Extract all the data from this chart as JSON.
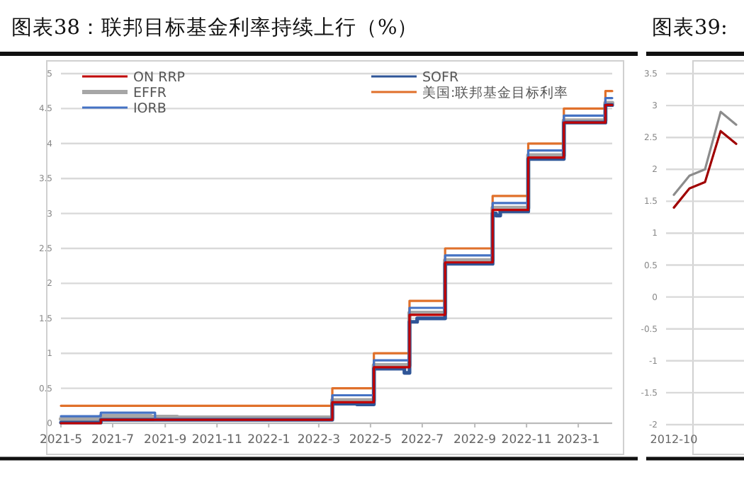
{
  "chart_data": [
    {
      "type": "step",
      "title": "图表38：联邦目标基金利率持续上行（%）",
      "xlim": [
        "2021-05-01",
        "2023-02-10"
      ],
      "xticks": [
        {
          "value": "2021-05-01",
          "label": "2021-5"
        },
        {
          "value": "2021-07-01",
          "label": "2021-7"
        },
        {
          "value": "2021-09-01",
          "label": "2021-9"
        },
        {
          "value": "2021-11-01",
          "label": "2021-11"
        },
        {
          "value": "2022-01-01",
          "label": "2022-1"
        },
        {
          "value": "2022-03-01",
          "label": "2022-3"
        },
        {
          "value": "2022-05-01",
          "label": "2022-5"
        },
        {
          "value": "2022-07-01",
          "label": "2022-7"
        },
        {
          "value": "2022-09-01",
          "label": "2022-9"
        },
        {
          "value": "2022-11-01",
          "label": "2022-11"
        },
        {
          "value": "2023-01-01",
          "label": "2023-1"
        }
      ],
      "ylim": [
        0,
        5
      ],
      "yticks": [
        0,
        0.5,
        1,
        1.5,
        2,
        2.5,
        3,
        3.5,
        4,
        4.5,
        5
      ],
      "grid": "y",
      "legend": "top",
      "series": [
        {
          "name": "ON RRP",
          "color": "#c00000",
          "x": [
            "2021-05-01",
            "2021-06-17",
            "2022-03-17",
            "2022-05-05",
            "2022-06-16",
            "2022-07-28",
            "2022-09-22",
            "2022-11-03",
            "2022-12-15",
            "2023-02-02",
            "2023-02-10"
          ],
          "values": [
            0,
            0.05,
            0.3,
            0.8,
            1.55,
            2.3,
            3.05,
            3.8,
            4.3,
            4.55,
            4.55
          ]
        },
        {
          "name": "EFFR",
          "color": "#a6a6a6",
          "x": [
            "2021-05-01",
            "2021-06-17",
            "2021-08-15",
            "2021-09-15",
            "2022-03-17",
            "2022-05-05",
            "2022-06-16",
            "2022-07-28",
            "2022-09-22",
            "2022-11-03",
            "2022-12-15",
            "2023-02-02",
            "2023-02-10"
          ],
          "values": [
            0.06,
            0.1,
            0.09,
            0.08,
            0.33,
            0.83,
            1.58,
            2.33,
            3.08,
            3.83,
            4.33,
            4.58,
            4.58
          ]
        },
        {
          "name": "IORB",
          "color": "#4472c4",
          "x": [
            "2021-05-01",
            "2021-06-17",
            "2021-08-20",
            "2022-03-17",
            "2022-05-05",
            "2022-06-16",
            "2022-07-28",
            "2022-09-22",
            "2022-11-03",
            "2022-12-15",
            "2023-02-02",
            "2023-02-10"
          ],
          "values": [
            0.1,
            0.15,
            0.05,
            0.4,
            0.9,
            1.65,
            2.4,
            3.15,
            3.9,
            4.4,
            4.65,
            4.65
          ]
        },
        {
          "name": "SOFR",
          "color": "#2f5597",
          "x": [
            "2021-05-01",
            "2021-06-17",
            "2022-03-17",
            "2022-04-15",
            "2022-05-05",
            "2022-06-10",
            "2022-06-16",
            "2022-06-25",
            "2022-07-28",
            "2022-09-22",
            "2022-09-26",
            "2022-10-01",
            "2022-11-03",
            "2022-12-15",
            "2023-02-02",
            "2023-02-10"
          ],
          "values": [
            0.01,
            0.05,
            0.28,
            0.27,
            0.78,
            0.72,
            1.45,
            1.5,
            2.28,
            3.0,
            2.97,
            3.03,
            3.78,
            4.3,
            4.55,
            4.55
          ]
        },
        {
          "name": "美国:联邦基金目标利率",
          "color": "#e0702a",
          "x": [
            "2021-05-01",
            "2022-03-17",
            "2022-05-05",
            "2022-06-16",
            "2022-07-28",
            "2022-09-22",
            "2022-11-03",
            "2022-12-15",
            "2023-02-02",
            "2023-02-10"
          ],
          "values": [
            0.25,
            0.5,
            1.0,
            1.75,
            2.5,
            3.25,
            4.0,
            4.5,
            4.75,
            4.75
          ]
        }
      ]
    },
    {
      "type": "line",
      "title": "图表39:",
      "categories": [
        "2012-10",
        null,
        null,
        null,
        null
      ],
      "ylim": [
        -2,
        3.5
      ],
      "yticks": [
        -2,
        -1.5,
        -1,
        -0.5,
        0,
        0.5,
        1,
        1.5,
        2,
        2.5,
        3,
        3.5
      ],
      "grid": "y",
      "series": [
        {
          "color": "#8c8c8c",
          "values": [
            1.6,
            1.9,
            2.0,
            2.9,
            2.7
          ]
        },
        {
          "color": "#a00000",
          "values": [
            1.4,
            1.7,
            1.8,
            2.6,
            2.4
          ]
        }
      ]
    }
  ]
}
